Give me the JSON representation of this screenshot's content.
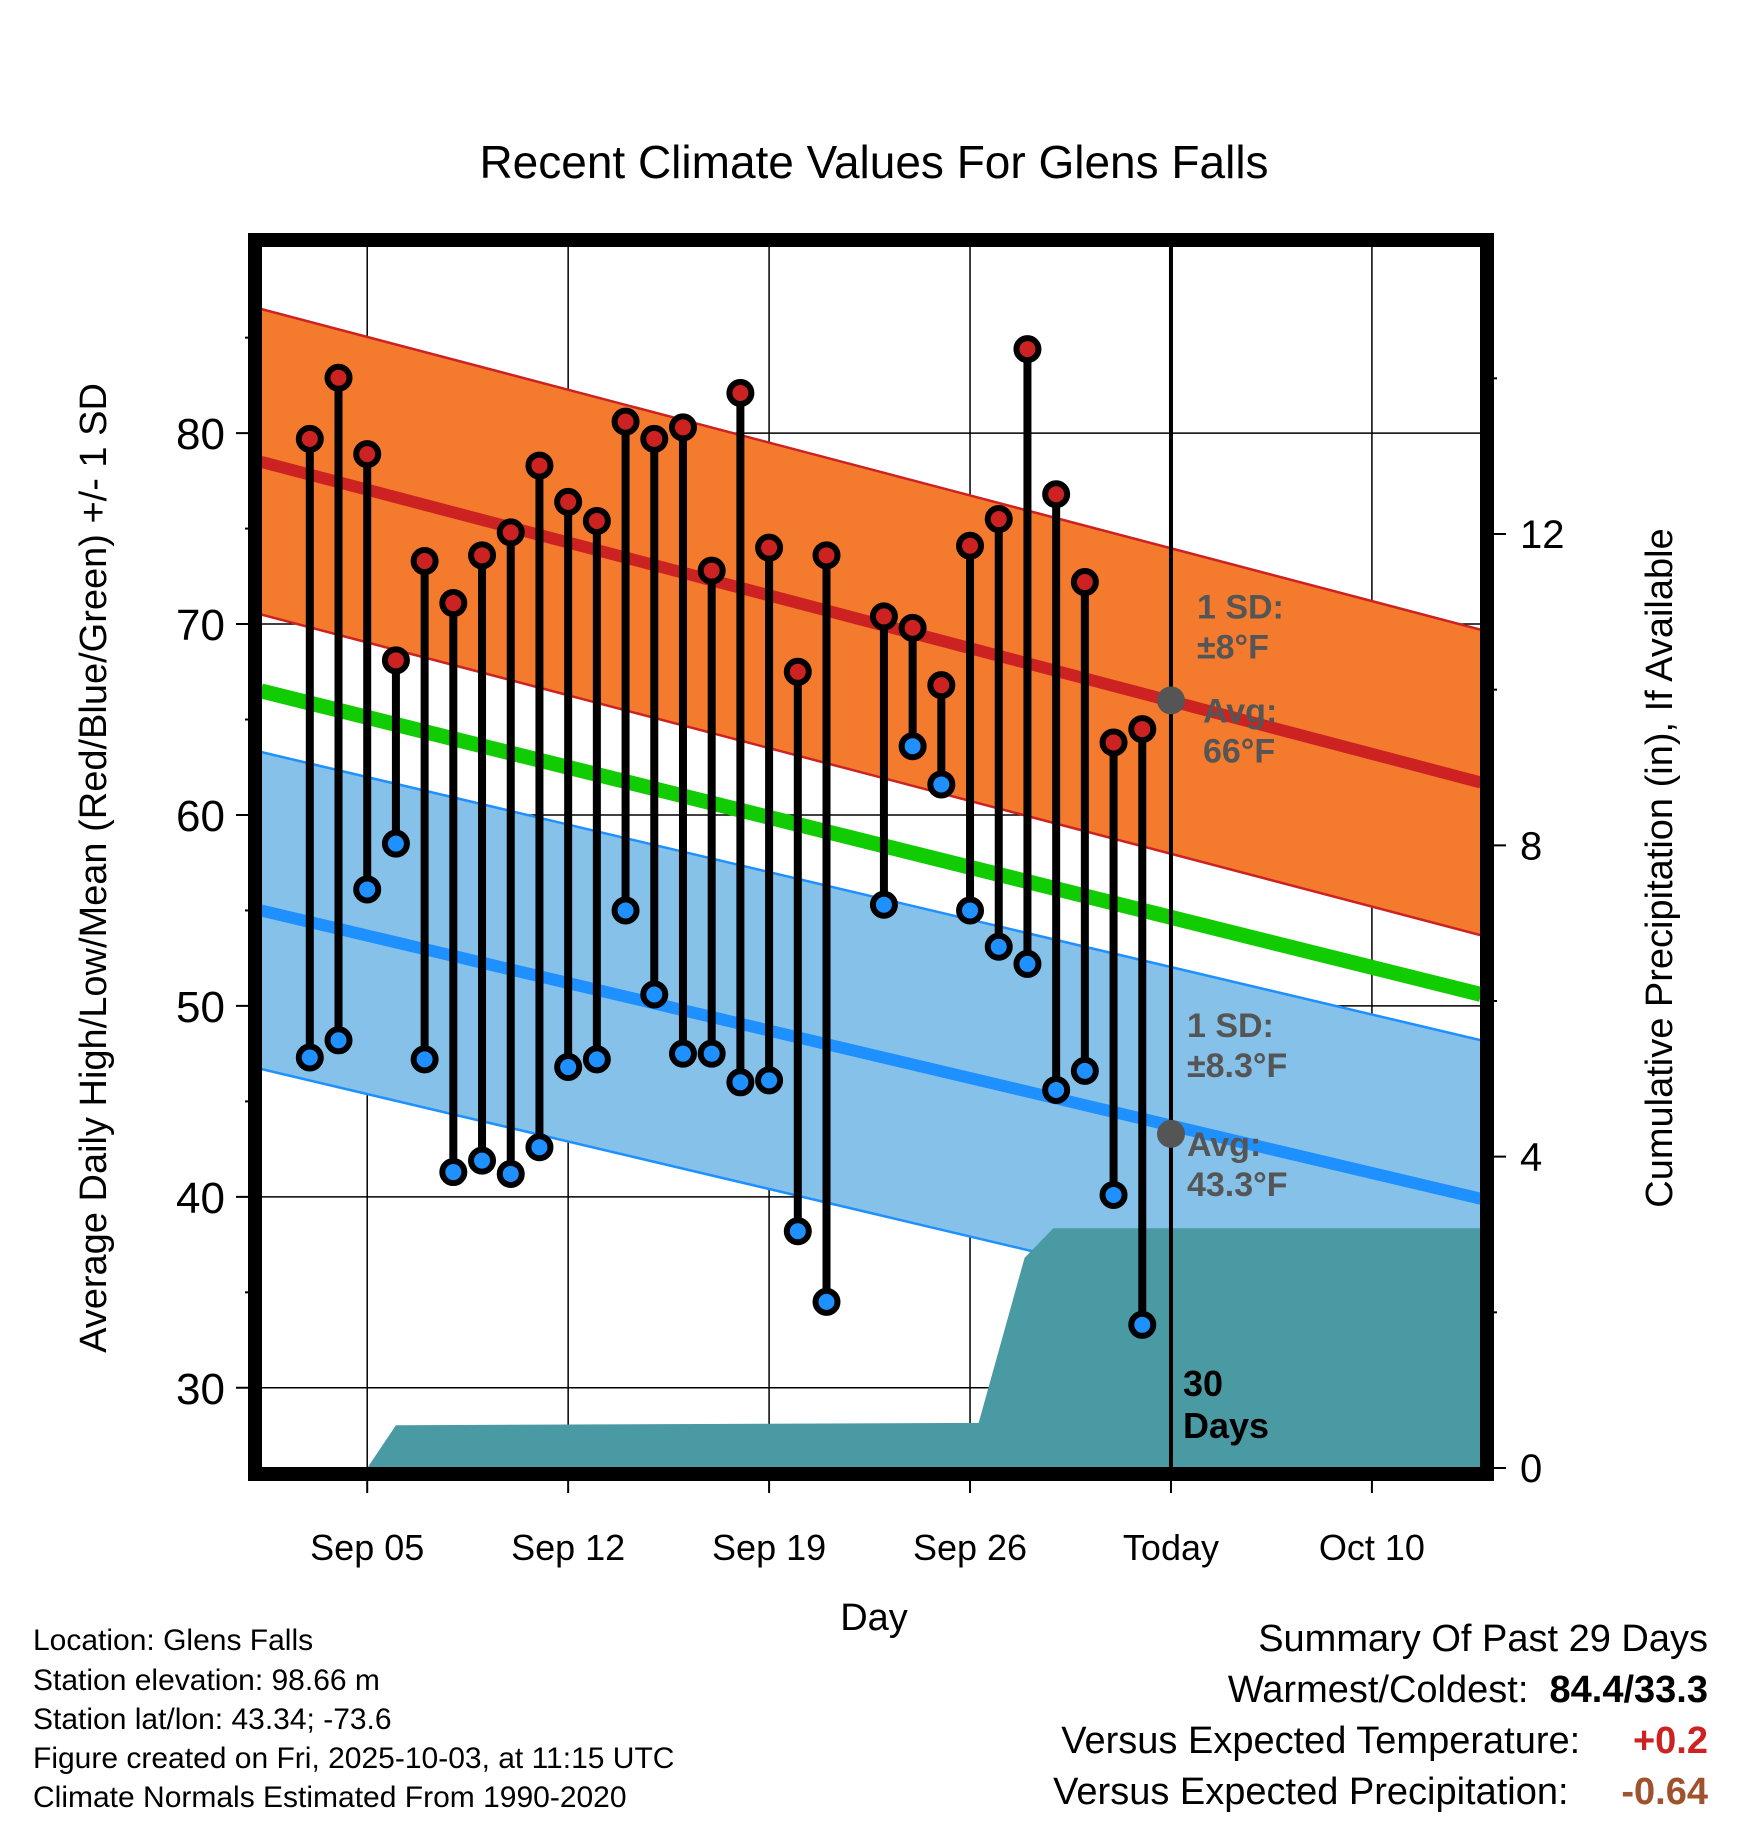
{
  "chart_data": {
    "type": "line",
    "title": "Recent Climate Values For Glens Falls",
    "xlabel": "Day",
    "ylabel": "Average Daily High/Low/Mean (Red/Blue/Green) +/- 1 SD",
    "y2label": "Cumulative Precipitation (in), If Available",
    "x_range_days": [
      -31.7,
      10.8
    ],
    "ylim": [
      25.8,
      89.8
    ],
    "y2lim": [
      0,
      15.7
    ],
    "x_tick_days": [
      -28,
      -21,
      -14,
      -7,
      0,
      7
    ],
    "x_tick_labels": [
      "Sep 05",
      "Sep 12",
      "Sep 19",
      "Sep 26",
      "Today",
      "Oct 10"
    ],
    "y_ticks": [
      30,
      40,
      50,
      60,
      70,
      80
    ],
    "y_tick_labels": [
      "30",
      "40",
      "50",
      "60",
      "70",
      "80"
    ],
    "y2_ticks": [
      0,
      4,
      8,
      12
    ],
    "y2_tick_labels": [
      "0",
      "4",
      "8",
      "12"
    ],
    "today_day": 0,
    "days": [
      -30,
      -29,
      -28,
      -27,
      -26,
      -25,
      -24,
      -23,
      -22,
      -21,
      -20,
      -19,
      -18,
      -17,
      -16,
      -15,
      -14,
      -13,
      -12,
      -10,
      -9,
      -8,
      -7,
      -6,
      -5,
      -4,
      -3,
      -2,
      -1
    ],
    "highs": [
      79.7,
      82.9,
      78.9,
      68.1,
      73.3,
      71.1,
      73.6,
      74.8,
      78.3,
      76.4,
      75.4,
      80.6,
      79.7,
      80.3,
      72.8,
      82.1,
      74.0,
      67.5,
      73.6,
      70.4,
      69.8,
      66.8,
      74.1,
      75.5,
      84.4,
      76.8,
      72.2,
      63.8,
      64.5
    ],
    "lows": [
      47.3,
      48.2,
      56.1,
      58.5,
      47.2,
      41.3,
      41.9,
      41.2,
      42.6,
      46.8,
      47.2,
      55.0,
      50.6,
      47.5,
      47.5,
      46.0,
      46.1,
      38.2,
      34.5,
      55.3,
      63.6,
      61.6,
      55.0,
      53.1,
      52.2,
      45.6,
      46.6,
      40.1,
      33.3
    ],
    "normal_high": {
      "start": 78.5,
      "end": 61.7,
      "today": 66.0
    },
    "normal_high_sd": 8.0,
    "normal_low": {
      "start": 55.0,
      "end": 39.9,
      "today": 43.3
    },
    "normal_low_sd": 8.3,
    "normal_mean": {
      "start": 66.5,
      "end": 50.6
    },
    "precip_days": [
      -28,
      -27,
      -6.7,
      -5.1,
      -4.1,
      10.8
    ],
    "precip_cum": [
      0.0,
      0.55,
      0.58,
      2.7,
      3.08,
      3.08
    ],
    "sd_high_label": [
      "1 SD:",
      "±8°F"
    ],
    "avg_high_label": [
      "Avg:",
      "66°F"
    ],
    "sd_low_label": [
      "1 SD:",
      "±8.3°F"
    ],
    "avg_low_label": [
      "Avg:",
      "43.3°F"
    ],
    "days_label": [
      "30",
      "Days"
    ],
    "colors": {
      "high": "#cc2222",
      "low": "#1e90ff",
      "mean": "#11cc00",
      "high_band": "#f47a2e",
      "low_band": "#85c1e8",
      "precip": "#4a9aa3",
      "annotation": "#555555"
    }
  },
  "info": {
    "location": "Location: Glens Falls",
    "elevation": "Station elevation: 98.66 m",
    "latlon": "Station lat/lon: 43.34; -73.6",
    "created": "Figure created on Fri, 2025-10-03, at 11:15 UTC",
    "normals": "Climate Normals Estimated From 1990-2020"
  },
  "summary": {
    "title": "Summary Of Past 29 Days",
    "warm_cold_label": "Warmest/Coldest:",
    "warm_cold_value": "84.4/33.3",
    "temp_label": "Versus Expected Temperature:",
    "temp_value": "+0.2",
    "temp_color": "#cc2222",
    "precip_label": "Versus Expected Precipitation:",
    "precip_value": "-0.64",
    "precip_color": "#a0522d"
  }
}
